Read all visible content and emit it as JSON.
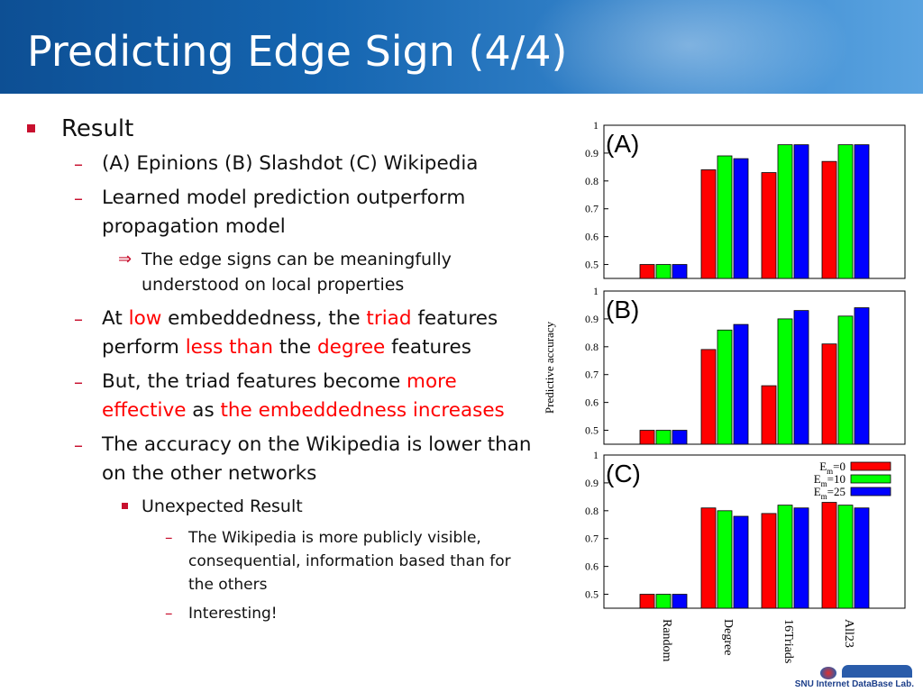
{
  "slide": {
    "title": "Predicting Edge Sign (4/4)",
    "bullets": {
      "result": "Result",
      "datasets": "(A) Epinions (B) Slashdot (C) Wikipedia",
      "learned": "Learned model prediction outperform propagation model",
      "implication_arrow": "⇒",
      "implication": "The edge signs can be meaningfully understood on local properties",
      "low_1": "At ",
      "low_2": "low",
      "low_3": " embeddedness, the ",
      "low_4": "triad",
      "low_5": " features perform ",
      "low_6": "less than",
      "low_7": " the ",
      "low_8": "degree",
      "low_9": " features",
      "but_1": "But, the triad features become ",
      "but_2": "more effective",
      "but_3": " as ",
      "but_4": "the embeddedness increases",
      "wiki": "The accuracy on the Wikipedia is lower than on the other networks",
      "unexpected": "Unexpected Result",
      "visible": "The Wikipedia is more publicly visible, consequential, information based than for the others",
      "interesting": "Interesting!"
    },
    "logo_text": "SNU Internet DataBase Lab."
  },
  "colors": {
    "accent": "#c8102e",
    "highlight": "#ff0000",
    "title_bar": "#1565b0",
    "e0": "#ff0000",
    "e10": "#00ff00",
    "e25": "#0000ff"
  },
  "chart_data": [
    {
      "type": "bar",
      "panel_label": "(A)",
      "categories": [
        "Random",
        "Degree",
        "16Triads",
        "All23"
      ],
      "series": [
        {
          "name": "Em=0",
          "values": [
            0.5,
            0.84,
            0.83,
            0.87
          ]
        },
        {
          "name": "Em=10",
          "values": [
            0.5,
            0.89,
            0.93,
            0.93
          ]
        },
        {
          "name": "Em=25",
          "values": [
            0.5,
            0.88,
            0.93,
            0.93
          ]
        }
      ],
      "ylim": [
        0.45,
        1.0
      ],
      "yticks": [
        "0.5",
        "0.6",
        "0.7",
        "0.8",
        "0.9",
        "1"
      ]
    },
    {
      "type": "bar",
      "panel_label": "(B)",
      "categories": [
        "Random",
        "Degree",
        "16Triads",
        "All23"
      ],
      "series": [
        {
          "name": "Em=0",
          "values": [
            0.5,
            0.79,
            0.66,
            0.81
          ]
        },
        {
          "name": "Em=10",
          "values": [
            0.5,
            0.86,
            0.9,
            0.91
          ]
        },
        {
          "name": "Em=25",
          "values": [
            0.5,
            0.88,
            0.93,
            0.94
          ]
        }
      ],
      "ylim": [
        0.45,
        1.0
      ],
      "yticks": [
        "0.5",
        "0.6",
        "0.7",
        "0.8",
        "0.9",
        "1"
      ],
      "ylabel": "Predictive accuracy"
    },
    {
      "type": "bar",
      "panel_label": "(C)",
      "categories": [
        "Random",
        "Degree",
        "16Triads",
        "All23"
      ],
      "series": [
        {
          "name": "Em=0",
          "values": [
            0.5,
            0.81,
            0.79,
            0.83
          ]
        },
        {
          "name": "Em=10",
          "values": [
            0.5,
            0.8,
            0.82,
            0.82
          ]
        },
        {
          "name": "Em=25",
          "values": [
            0.5,
            0.78,
            0.81,
            0.81
          ]
        }
      ],
      "ylim": [
        0.45,
        1.0
      ],
      "yticks": [
        "0.5",
        "0.6",
        "0.7",
        "0.8",
        "0.9",
        "1"
      ],
      "legend": [
        {
          "base": "E",
          "sub": "m",
          "suffix": "=0"
        },
        {
          "base": "E",
          "sub": "m",
          "suffix": "=10"
        },
        {
          "base": "E",
          "sub": "m",
          "suffix": "=25"
        }
      ],
      "legend_position": "top-right"
    }
  ]
}
